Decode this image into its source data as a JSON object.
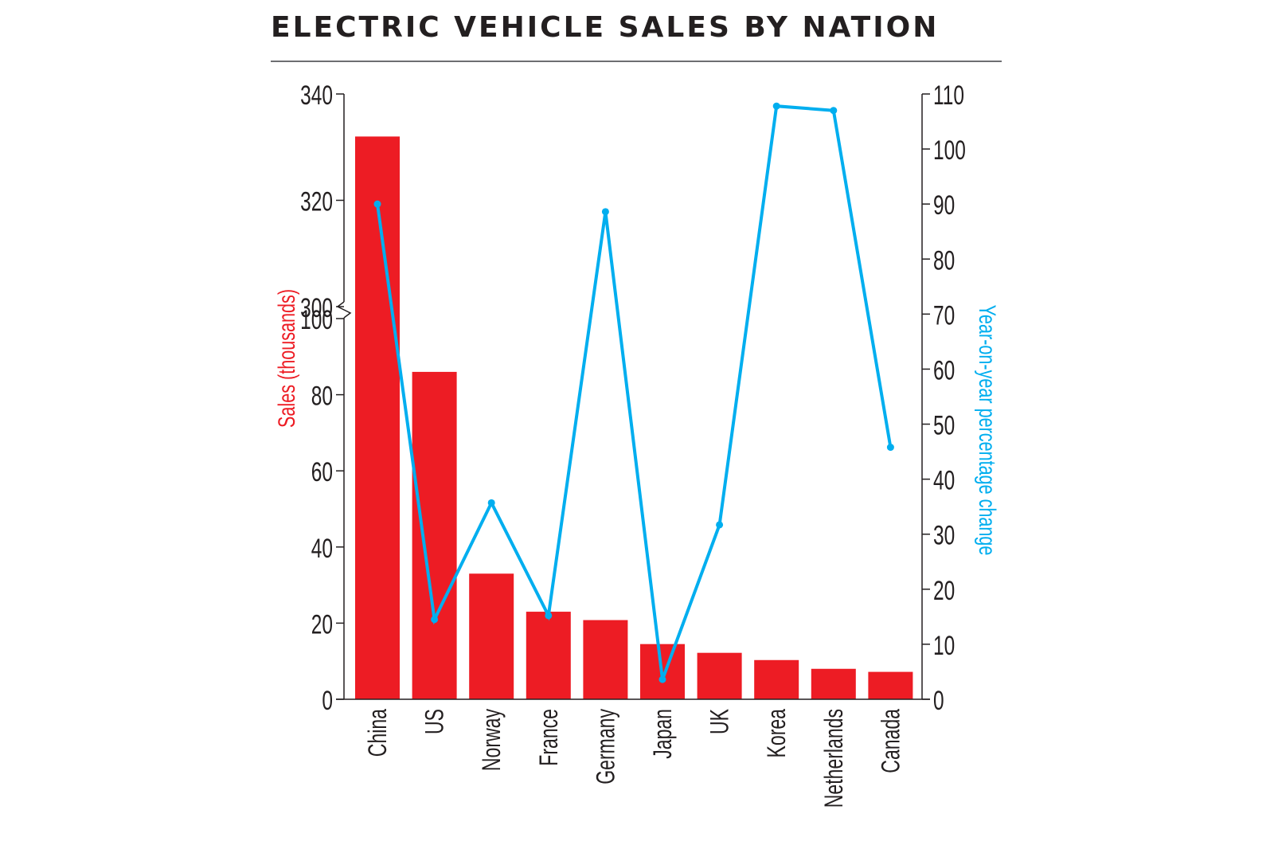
{
  "chart_data": {
    "type": "bar",
    "title": "ELECTRIC VEHICLE SALES BY NATION",
    "categories": [
      "China",
      "US",
      "Norway",
      "France",
      "Germany",
      "Japan",
      "UK",
      "Korea",
      "Netherlands",
      "Canada"
    ],
    "series": [
      {
        "name": "Sales (thousands)",
        "type": "bar",
        "axis": "left",
        "color": "#ed1c24",
        "values": [
          332,
          86,
          33,
          23,
          20.8,
          14.5,
          12.2,
          10.3,
          8,
          7.2
        ]
      },
      {
        "name": "Year-on-year percentage change",
        "type": "line",
        "axis": "right",
        "color": "#00aeef",
        "values": [
          90,
          14.5,
          35.7,
          15.2,
          88.6,
          3.6,
          31.7,
          107.8,
          107,
          45.8
        ]
      }
    ],
    "y_left": {
      "label": "Sales (thousands)",
      "color": "#ed1c24",
      "axis_break": "100 to 300",
      "lower_range": [
        0,
        100
      ],
      "upper_range": [
        300,
        340
      ],
      "ticks": [
        "0",
        "20",
        "40",
        "60",
        "80",
        "100",
        "300",
        "320",
        "340"
      ]
    },
    "y_right": {
      "label": "Year-on-year percentage change",
      "color": "#00aeef",
      "range": [
        0,
        110
      ],
      "ticks": [
        "0",
        "10",
        "20",
        "30",
        "40",
        "50",
        "60",
        "70",
        "80",
        "90",
        "100",
        "110"
      ]
    },
    "xlabel": "",
    "grid": false,
    "legend": "none"
  }
}
